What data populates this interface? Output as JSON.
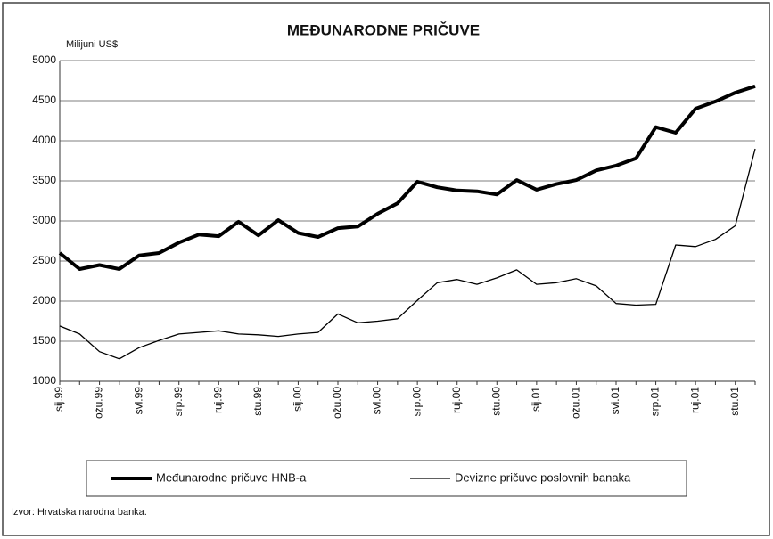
{
  "chart_data": {
    "type": "line",
    "title": "MEĐUNARODNE PRIČUVE",
    "y_label": "Milijuni US$",
    "source": "Izvor: Hrvatska narodna banka.",
    "categories": [
      "sij.99",
      null,
      "ožu.99",
      null,
      "svi.99",
      null,
      "srp.99",
      null,
      "ruj.99",
      null,
      "stu.99",
      null,
      "sij.00",
      null,
      "ožu.00",
      null,
      "svi.00",
      null,
      "srp.00",
      null,
      "ruj.00",
      null,
      "stu.00",
      null,
      "sij.01",
      null,
      "ožu.01",
      null,
      "svi.01",
      null,
      "srp.01",
      null,
      "ruj.01",
      null,
      "stu.01",
      null
    ],
    "series": [
      {
        "name": "Međunarodne pričuve HNB-a",
        "color": "#000000",
        "width": 4,
        "values": [
          2600,
          2400,
          2450,
          2400,
          2570,
          2600,
          2730,
          2830,
          2810,
          2990,
          2820,
          3010,
          2850,
          2800,
          2910,
          2930,
          3090,
          3220,
          3490,
          3420,
          3380,
          3370,
          3330,
          3510,
          3390,
          3460,
          3510,
          3630,
          3690,
          3780,
          4170,
          4100,
          4400,
          4490,
          4600,
          4680
        ]
      },
      {
        "name": "Devizne pričuve poslovnih banaka",
        "color": "#000000",
        "width": 1.3,
        "values": [
          1690,
          1590,
          1370,
          1280,
          1420,
          1510,
          1590,
          1610,
          1630,
          1590,
          1580,
          1560,
          1590,
          1610,
          1840,
          1730,
          1750,
          1780,
          2010,
          2230,
          2270,
          2210,
          2290,
          2390,
          2210,
          2230,
          2280,
          2190,
          1970,
          1950,
          1960,
          2700,
          2680,
          2770,
          2940,
          3900
        ]
      }
    ],
    "ylim": [
      1000,
      5000
    ],
    "yticks": [
      1000,
      1500,
      2000,
      2500,
      3000,
      3500,
      4000,
      4500,
      5000
    ],
    "grid": true
  }
}
